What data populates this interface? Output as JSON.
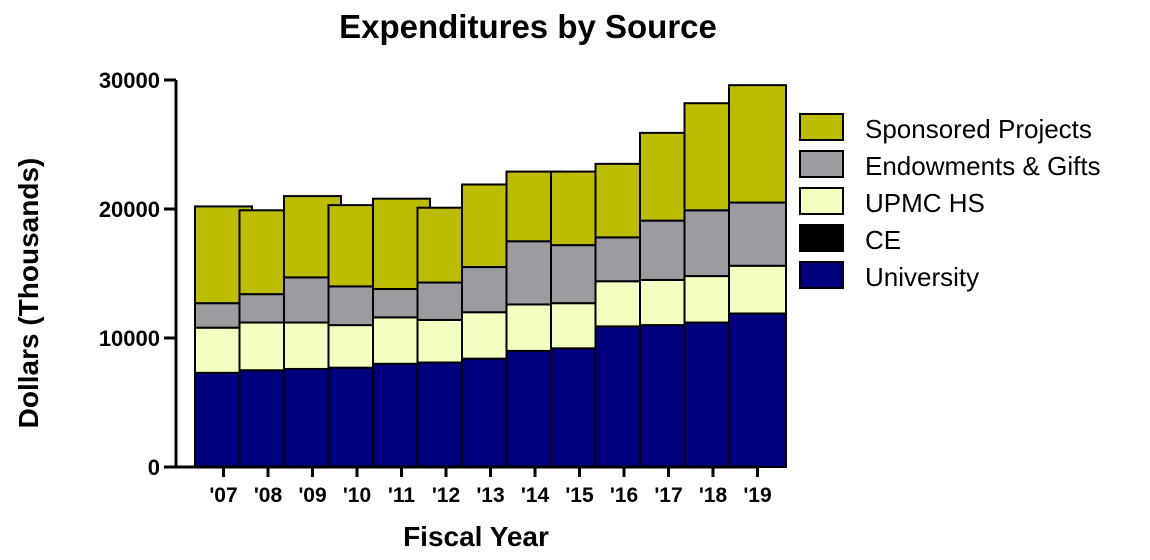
{
  "chart_data": {
    "type": "bar",
    "stacked": true,
    "title": "Expenditures by Source",
    "xlabel": "Fiscal Year",
    "ylabel": "Dollars (Thousands)",
    "categories": [
      "'07",
      "'08",
      "'09",
      "'10",
      "'11",
      "'12",
      "'13",
      "'14",
      "'15",
      "'16",
      "'17",
      "'18",
      "'19"
    ],
    "yticks": [
      "0",
      "10000",
      "20000",
      "30000"
    ],
    "ylim": [
      0,
      30000
    ],
    "legend_position": "right",
    "series": [
      {
        "name": "University",
        "color": "#00007f",
        "values": [
          7300,
          7500,
          7600,
          7700,
          8000,
          8100,
          8400,
          9000,
          9200,
          10900,
          11000,
          11200,
          11900
        ]
      },
      {
        "name": "CE",
        "color": "#000000",
        "values": [
          0,
          0,
          0,
          0,
          0,
          0,
          0,
          0,
          0,
          0,
          0,
          0,
          0
        ]
      },
      {
        "name": "UPMC HS",
        "color": "#f2ffc0",
        "values": [
          3500,
          3700,
          3600,
          3300,
          3600,
          3300,
          3600,
          3600,
          3500,
          3500,
          3500,
          3600,
          3700
        ]
      },
      {
        "name": "Endowments & Gifts",
        "color": "#9c9ca0",
        "values": [
          1900,
          2200,
          3500,
          3000,
          2200,
          2900,
          3500,
          4900,
          4500,
          3400,
          4600,
          5100,
          4900
        ]
      },
      {
        "name": "Sponsored Projects",
        "color": "#bdbd00",
        "values": [
          7500,
          6500,
          6300,
          6300,
          7000,
          5800,
          6400,
          5400,
          5700,
          5700,
          6800,
          8300,
          9100
        ]
      }
    ]
  }
}
